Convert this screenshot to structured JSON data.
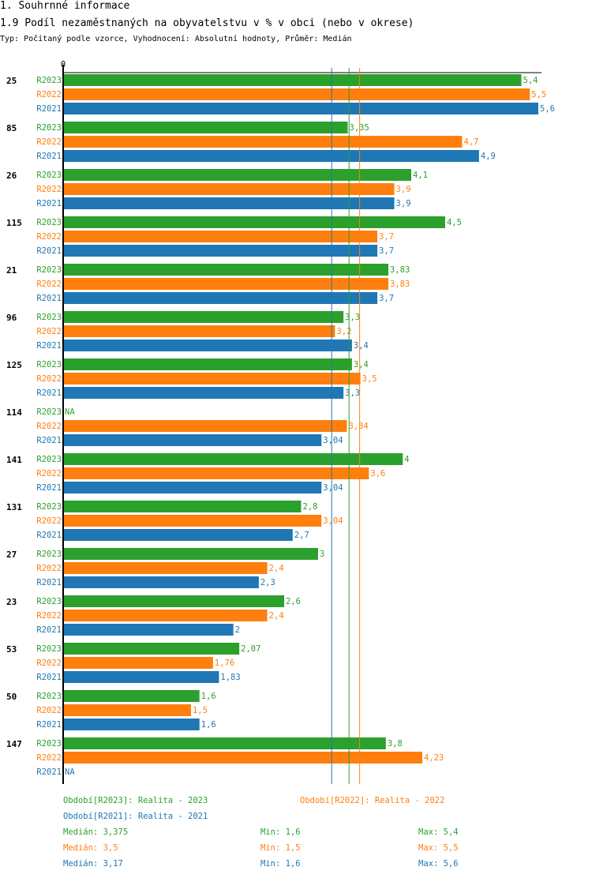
{
  "header": {
    "section": "1. Souhrnné informace",
    "title": "1.9 Podíl nezaměstnaných na obyvatelstvu v % v obci (nebo v okrese)",
    "subtitle": "Typ: Počítaný podle vzorce, Vyhodnocení: Absolutní hodnoty, Průměr: Medián"
  },
  "colors": {
    "R2023": "#2ca02c",
    "R2022": "#ff7f0e",
    "R2021": "#1f77b4"
  },
  "chart_data": {
    "type": "bar",
    "orientation": "horizontal",
    "title": "1.9 Podíl nezaměstnaných na obyvatelstvu v % v obci (nebo v okrese)",
    "axis_zero_label": "0",
    "xlim": [
      0,
      5.6
    ],
    "series_names": [
      "R2023",
      "R2022",
      "R2021"
    ],
    "categories": [
      "25",
      "85",
      "26",
      "115",
      "21",
      "96",
      "125",
      "114",
      "141",
      "131",
      "27",
      "23",
      "53",
      "50",
      "147"
    ],
    "series": [
      {
        "name": "R2023",
        "values": [
          5.4,
          3.35,
          4.1,
          4.5,
          3.83,
          3.3,
          3.4,
          null,
          4,
          2.8,
          3,
          2.6,
          2.07,
          1.6,
          3.8
        ],
        "labels": [
          "5,4",
          "3,35",
          "4,1",
          "4,5",
          "3,83",
          "3,3",
          "3,4",
          "NA",
          "4",
          "2,8",
          "3",
          "2,6",
          "2,07",
          "1,6",
          "3,8"
        ]
      },
      {
        "name": "R2022",
        "values": [
          5.5,
          4.7,
          3.9,
          3.7,
          3.83,
          3.2,
          3.5,
          3.34,
          3.6,
          3.04,
          2.4,
          2.4,
          1.76,
          1.5,
          4.23
        ],
        "labels": [
          "5,5",
          "4,7",
          "3,9",
          "3,7",
          "3,83",
          "3,2",
          "3,5",
          "3,34",
          "3,6",
          "3,04",
          "2,4",
          "2,4",
          "1,76",
          "1,5",
          "4,23"
        ]
      },
      {
        "name": "R2021",
        "values": [
          5.6,
          4.9,
          3.9,
          3.7,
          3.7,
          3.4,
          3.3,
          3.04,
          3.04,
          2.7,
          2.3,
          2,
          1.83,
          1.6,
          null
        ],
        "labels": [
          "5,6",
          "4,9",
          "3,9",
          "3,7",
          "3,7",
          "3,4",
          "3,3",
          "3,04",
          "3,04",
          "2,7",
          "2,3",
          "2",
          "1,83",
          "1,6",
          "NA"
        ]
      }
    ],
    "medians": {
      "R2023": 3.375,
      "R2022": 3.5,
      "R2021": 3.17
    },
    "legend": {
      "periods": [
        {
          "series": "R2023",
          "text": "Období[R2023]: Realita - 2023"
        },
        {
          "series": "R2022",
          "text": "Období[R2022]: Realita - 2022"
        },
        {
          "series": "R2021",
          "text": "Období[R2021]: Realita - 2021"
        }
      ],
      "stats": [
        {
          "series": "R2023",
          "median": "Medián: 3,375",
          "min": "Min: 1,6",
          "max": "Max: 5,4"
        },
        {
          "series": "R2022",
          "median": "Medián: 3,5",
          "min": "Min: 1,5",
          "max": "Max: 5,5"
        },
        {
          "series": "R2021",
          "median": "Medián: 3,17",
          "min": "Min: 1,6",
          "max": "Max: 5,6"
        }
      ]
    }
  }
}
